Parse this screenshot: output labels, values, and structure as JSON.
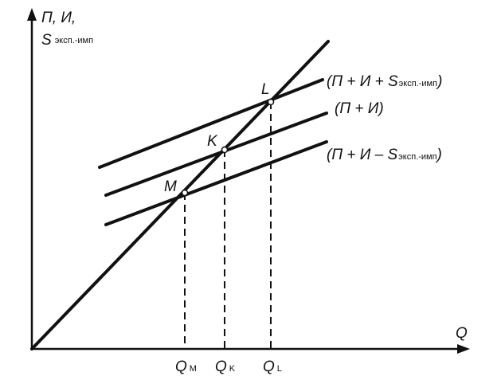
{
  "axes": {
    "y_label_line1": "П, И,",
    "y_label_s": "S",
    "y_label_sub": "эксп.-имп",
    "x_label": "Q"
  },
  "lines": [
    {
      "label_main": "(П + И + S",
      "label_sub": "эксп.-имп",
      "label_end": ")"
    },
    {
      "label_main": "(П + И)"
    },
    {
      "label_main": "(П + И – S",
      "label_sub": "эксп.-имп",
      "label_end": ")"
    }
  ],
  "points": [
    "L",
    "K",
    "M"
  ],
  "q_labels": [
    {
      "main": "Q",
      "sub": "M"
    },
    {
      "main": "Q",
      "sub": "K"
    },
    {
      "main": "Q",
      "sub": "L"
    }
  ]
}
